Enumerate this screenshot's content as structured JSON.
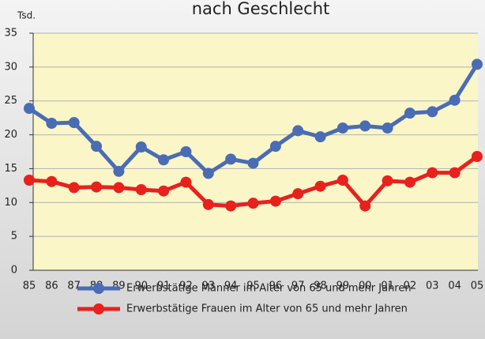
{
  "chart_data": {
    "type": "line",
    "title": "nach Geschlecht",
    "y_label": "Tsd.",
    "categories": [
      "85",
      "86",
      "87",
      "88",
      "89",
      "90",
      "91",
      "92",
      "93",
      "94",
      "95",
      "96",
      "97",
      "98",
      "99",
      "00",
      "01",
      "02",
      "03",
      "04",
      "05"
    ],
    "series": [
      {
        "name": "Erwerbstätige Männer im Alter von 65 und mehr Jahren",
        "color": "#4a6cb5",
        "values": [
          23.9,
          21.7,
          21.8,
          18.3,
          14.6,
          18.2,
          16.3,
          17.5,
          14.3,
          16.4,
          15.8,
          18.3,
          20.6,
          19.7,
          21.0,
          21.3,
          21.0,
          23.2,
          23.4,
          25.1,
          30.4
        ]
      },
      {
        "name": "Erwerbstätige Frauen im Alter von 65 und mehr Jahren",
        "color": "#e8211d",
        "values": [
          13.3,
          13.1,
          12.2,
          12.3,
          12.2,
          11.9,
          11.7,
          13.0,
          9.7,
          9.5,
          9.9,
          10.2,
          11.3,
          12.4,
          13.3,
          9.5,
          13.2,
          13.0,
          14.4,
          14.4,
          16.8
        ]
      }
    ],
    "ylim": [
      0,
      35
    ],
    "yticks": [
      0,
      5,
      10,
      15,
      20,
      25,
      30,
      35
    ],
    "grid": true
  }
}
